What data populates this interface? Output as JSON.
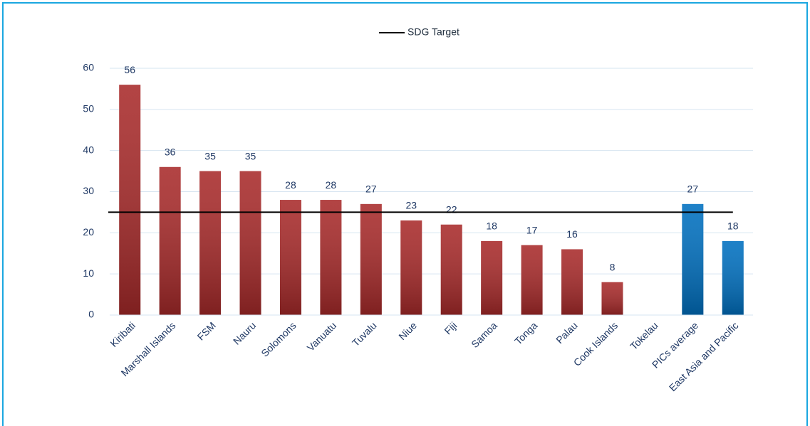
{
  "chart_data": {
    "type": "bar",
    "categories": [
      "Kiribati",
      "Marshall Islands",
      "FSM",
      "Nauru",
      "Solomons",
      "Vanuatu",
      "Tuvalu",
      "Niue",
      "Fiji",
      "Samoa",
      "Tonga",
      "Palau",
      "Cook Islands",
      "Tokelau",
      "PICs average",
      "East Asia and Pacific"
    ],
    "values": [
      56,
      36,
      35,
      35,
      28,
      28,
      27,
      23,
      22,
      18,
      17,
      16,
      8,
      null,
      27,
      18
    ],
    "colors": [
      "#a82a2a",
      "#a82a2a",
      "#a82a2a",
      "#a82a2a",
      "#a82a2a",
      "#a82a2a",
      "#a82a2a",
      "#a82a2a",
      "#a82a2a",
      "#a82a2a",
      "#a82a2a",
      "#a82a2a",
      "#a82a2a",
      "#a82a2a",
      "#0070c0",
      "#0070c0"
    ],
    "target": {
      "name": "SDG Target",
      "value": 25,
      "color": "#000000"
    },
    "ylim": [
      0,
      60
    ],
    "yticks": [
      0,
      10,
      20,
      30,
      40,
      50,
      60
    ],
    "grid": true
  }
}
